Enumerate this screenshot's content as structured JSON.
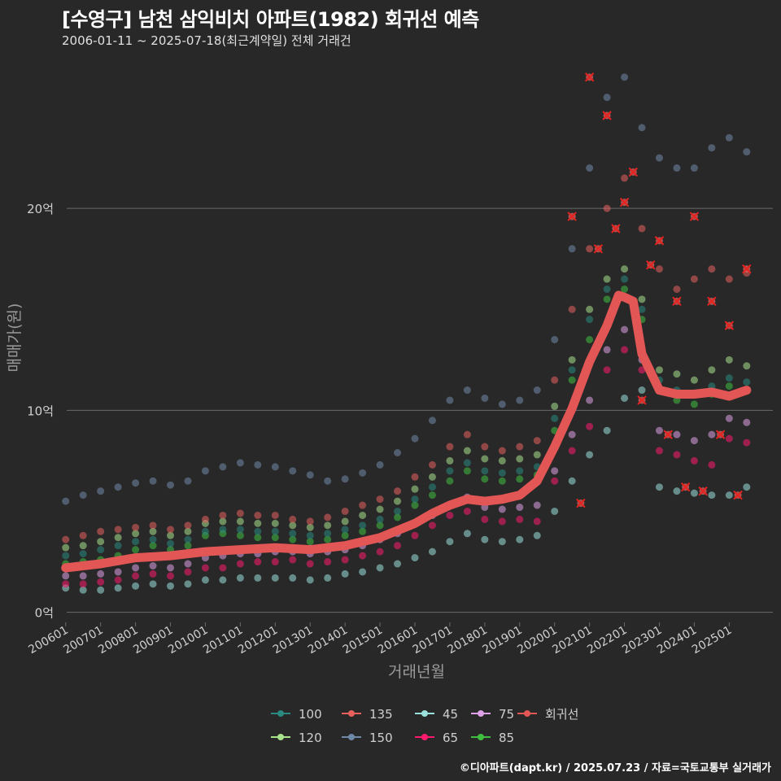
{
  "title": "[수영구] 남천 삼익비치 아파트(1982) 회귀선 예측",
  "subtitle": "2006-01-11 ~ 2025-07-18(최근계약일) 전체 거래건",
  "footer": "©디아파트(dapt.kr) / 2025.07.23 / 자료=국토교통부 실거래가",
  "colors": {
    "background": "#282828",
    "gridline": "#6a6a6a",
    "axis_text": "#cfcfcf",
    "axis_title": "#9a9a9a",
    "outlier_marker": "#e8231f"
  },
  "chart_data": {
    "type": "scatter",
    "title": "[수영구] 남천 삼익비치 아파트(1982) 회귀선 예측",
    "subtitle": "2006-01-11 ~ 2025-07-18(최근계약일) 전체 거래건",
    "xlabel": "거래년월",
    "ylabel": "매매가(원)",
    "xlim": [
      "2005-10",
      "2026-04"
    ],
    "ylim": [
      -0.5,
      27.5
    ],
    "y_unit": "억",
    "y_ticks": [
      {
        "value": 0,
        "label": "0억"
      },
      {
        "value": 10,
        "label": "10억"
      },
      {
        "value": 20,
        "label": "20억"
      }
    ],
    "x_tick_labels": [
      "200601",
      "200701",
      "200801",
      "200901",
      "201001",
      "201101",
      "201201",
      "201301",
      "201401",
      "201501",
      "201601",
      "201701",
      "201801",
      "201901",
      "202001",
      "202101",
      "202201",
      "202301",
      "202401",
      "202501"
    ],
    "grid": "horizontal",
    "legend_position": "bottom",
    "legend_entries": [
      "100",
      "120",
      "135",
      "150",
      "45",
      "65",
      "75",
      "85",
      "회귀선"
    ],
    "series": [
      {
        "name": "45",
        "color": "#9ae0dc",
        "x": [
          "2006-01",
          "2006-07",
          "2007-01",
          "2007-07",
          "2008-01",
          "2008-07",
          "2009-01",
          "2009-07",
          "2010-01",
          "2010-07",
          "2011-01",
          "2011-07",
          "2012-01",
          "2012-07",
          "2013-01",
          "2013-07",
          "2014-01",
          "2014-07",
          "2015-01",
          "2015-07",
          "2016-01",
          "2016-07",
          "2017-01",
          "2017-07",
          "2018-01",
          "2018-07",
          "2019-01",
          "2019-07",
          "2020-01",
          "2020-07",
          "2021-01",
          "2021-07",
          "2022-01",
          "2022-07",
          "2023-01",
          "2023-07",
          "2024-01",
          "2024-07",
          "2025-01",
          "2025-07"
        ],
        "y": [
          1.2,
          1.1,
          1.1,
          1.2,
          1.3,
          1.4,
          1.3,
          1.4,
          1.6,
          1.6,
          1.7,
          1.7,
          1.7,
          1.7,
          1.6,
          1.7,
          1.9,
          2.0,
          2.2,
          2.4,
          2.7,
          3.0,
          3.5,
          3.9,
          3.6,
          3.5,
          3.6,
          3.8,
          5.0,
          6.5,
          7.8,
          9.0,
          10.6,
          11.0,
          6.2,
          6.0,
          5.9,
          5.8,
          5.8,
          6.2
        ]
      },
      {
        "name": "65",
        "color": "#ff1a6e",
        "x": [
          "2006-01",
          "2006-07",
          "2007-01",
          "2007-07",
          "2008-01",
          "2008-07",
          "2009-01",
          "2009-07",
          "2010-01",
          "2010-07",
          "2011-01",
          "2011-07",
          "2012-01",
          "2012-07",
          "2013-01",
          "2013-07",
          "2014-01",
          "2014-07",
          "2015-01",
          "2015-07",
          "2016-01",
          "2016-07",
          "2017-01",
          "2017-07",
          "2018-01",
          "2018-07",
          "2019-01",
          "2019-07",
          "2020-01",
          "2020-07",
          "2021-01",
          "2021-07",
          "2022-01",
          "2022-07",
          "2023-01",
          "2023-07",
          "2024-01",
          "2024-07",
          "2025-01",
          "2025-07"
        ],
        "y": [
          1.4,
          1.4,
          1.5,
          1.6,
          1.8,
          1.9,
          1.8,
          2.0,
          2.2,
          2.2,
          2.4,
          2.5,
          2.5,
          2.6,
          2.4,
          2.5,
          2.6,
          2.8,
          3.0,
          3.3,
          3.8,
          4.3,
          4.8,
          5.0,
          4.6,
          4.5,
          4.6,
          4.5,
          6.5,
          8.0,
          9.2,
          12.0,
          13.0,
          12.0,
          8.0,
          7.8,
          7.5,
          7.3,
          8.6,
          8.4
        ]
      },
      {
        "name": "75",
        "color": "#dea0e6",
        "x": [
          "2006-01",
          "2006-07",
          "2007-01",
          "2007-07",
          "2008-01",
          "2008-07",
          "2009-01",
          "2009-07",
          "2010-01",
          "2010-07",
          "2011-01",
          "2011-07",
          "2012-01",
          "2012-07",
          "2013-01",
          "2013-07",
          "2014-01",
          "2014-07",
          "2015-01",
          "2015-07",
          "2016-01",
          "2016-07",
          "2017-01",
          "2017-07",
          "2018-01",
          "2018-07",
          "2019-01",
          "2019-07",
          "2020-01",
          "2020-07",
          "2021-01",
          "2021-07",
          "2022-01",
          "2022-07",
          "2023-01",
          "2023-07",
          "2024-01",
          "2024-07",
          "2025-01",
          "2025-07"
        ],
        "y": [
          1.8,
          1.8,
          1.9,
          2.0,
          2.2,
          2.3,
          2.2,
          2.4,
          2.7,
          2.8,
          2.9,
          2.9,
          3.0,
          3.0,
          2.9,
          3.0,
          3.1,
          3.3,
          3.6,
          3.9,
          4.4,
          4.8,
          5.3,
          5.7,
          5.2,
          5.1,
          5.2,
          5.3,
          7.0,
          8.8,
          10.5,
          13.0,
          14.0,
          12.5,
          9.0,
          8.8,
          8.5,
          8.8,
          9.6,
          9.4
        ]
      },
      {
        "name": "85",
        "color": "#3fbf3f",
        "x": [
          "2006-01",
          "2006-07",
          "2007-01",
          "2007-07",
          "2008-01",
          "2008-07",
          "2009-01",
          "2009-07",
          "2010-01",
          "2010-07",
          "2011-01",
          "2011-07",
          "2012-01",
          "2012-07",
          "2013-01",
          "2013-07",
          "2014-01",
          "2014-07",
          "2015-01",
          "2015-07",
          "2016-01",
          "2016-07",
          "2017-01",
          "2017-07",
          "2018-01",
          "2018-07",
          "2019-01",
          "2019-07",
          "2020-01",
          "2020-07",
          "2021-01",
          "2021-07",
          "2022-01",
          "2022-07",
          "2023-01",
          "2023-07",
          "2024-01",
          "2024-07",
          "2025-01",
          "2025-07"
        ],
        "y": [
          2.4,
          2.5,
          2.6,
          2.8,
          3.1,
          3.3,
          3.1,
          3.3,
          3.8,
          3.9,
          3.8,
          3.7,
          3.7,
          3.6,
          3.5,
          3.6,
          3.8,
          4.0,
          4.3,
          4.7,
          5.3,
          5.8,
          6.5,
          7.0,
          6.6,
          6.5,
          6.6,
          6.8,
          9.0,
          11.5,
          13.5,
          15.5,
          16.0,
          14.5,
          11.0,
          10.5,
          10.3,
          10.8,
          11.2,
          11.0
        ]
      },
      {
        "name": "100",
        "color": "#2a8a80",
        "x": [
          "2006-01",
          "2006-07",
          "2007-01",
          "2007-07",
          "2008-01",
          "2008-07",
          "2009-01",
          "2009-07",
          "2010-01",
          "2010-07",
          "2011-01",
          "2011-07",
          "2012-01",
          "2012-07",
          "2013-01",
          "2013-07",
          "2014-01",
          "2014-07",
          "2015-01",
          "2015-07",
          "2016-01",
          "2016-07",
          "2017-01",
          "2017-07",
          "2018-01",
          "2018-07",
          "2019-01",
          "2019-07",
          "2020-01",
          "2020-07",
          "2021-01",
          "2021-07",
          "2022-01",
          "2022-07",
          "2023-01",
          "2023-07",
          "2024-01",
          "2024-07",
          "2025-01",
          "2025-07"
        ],
        "y": [
          2.8,
          2.9,
          3.1,
          3.3,
          3.5,
          3.6,
          3.4,
          3.6,
          4.0,
          4.1,
          4.1,
          4.0,
          4.0,
          3.9,
          3.8,
          3.9,
          4.1,
          4.3,
          4.6,
          5.0,
          5.6,
          6.2,
          7.0,
          7.4,
          7.0,
          6.9,
          7.0,
          7.2,
          9.6,
          12.0,
          14.5,
          16.0,
          16.5,
          15.0,
          11.5,
          11.0,
          10.8,
          11.2,
          11.6,
          11.4
        ]
      },
      {
        "name": "120",
        "color": "#a8e28c",
        "x": [
          "2006-01",
          "2006-07",
          "2007-01",
          "2007-07",
          "2008-01",
          "2008-07",
          "2009-01",
          "2009-07",
          "2010-01",
          "2010-07",
          "2011-01",
          "2011-07",
          "2012-01",
          "2012-07",
          "2013-01",
          "2013-07",
          "2014-01",
          "2014-07",
          "2015-01",
          "2015-07",
          "2016-01",
          "2016-07",
          "2017-01",
          "2017-07",
          "2018-01",
          "2018-07",
          "2019-01",
          "2019-07",
          "2020-01",
          "2020-07",
          "2021-01",
          "2021-07",
          "2022-01",
          "2022-07",
          "2023-01",
          "2023-07",
          "2024-01",
          "2024-07",
          "2025-01",
          "2025-07"
        ],
        "y": [
          3.2,
          3.3,
          3.5,
          3.7,
          3.9,
          4.0,
          3.8,
          4.0,
          4.4,
          4.5,
          4.5,
          4.4,
          4.4,
          4.3,
          4.2,
          4.3,
          4.5,
          4.8,
          5.1,
          5.5,
          6.1,
          6.7,
          7.5,
          8.0,
          7.6,
          7.5,
          7.6,
          7.8,
          10.2,
          12.5,
          15.0,
          16.5,
          17.0,
          15.5,
          12.0,
          11.8,
          11.5,
          12.0,
          12.5,
          12.2
        ]
      },
      {
        "name": "135",
        "color": "#e8605e",
        "x": [
          "2006-01",
          "2006-07",
          "2007-01",
          "2007-07",
          "2008-01",
          "2008-07",
          "2009-01",
          "2009-07",
          "2010-01",
          "2010-07",
          "2011-01",
          "2011-07",
          "2012-01",
          "2012-07",
          "2013-01",
          "2013-07",
          "2014-01",
          "2014-07",
          "2015-01",
          "2015-07",
          "2016-01",
          "2016-07",
          "2017-01",
          "2017-07",
          "2018-01",
          "2018-07",
          "2019-01",
          "2019-07",
          "2020-01",
          "2020-07",
          "2021-01",
          "2021-07",
          "2022-01",
          "2022-07",
          "2023-01",
          "2023-07",
          "2024-01",
          "2024-07",
          "2025-01",
          "2025-07"
        ],
        "y": [
          3.6,
          3.8,
          4.0,
          4.1,
          4.2,
          4.3,
          4.1,
          4.3,
          4.6,
          4.8,
          4.9,
          4.8,
          4.8,
          4.6,
          4.5,
          4.7,
          5.0,
          5.3,
          5.6,
          6.0,
          6.7,
          7.3,
          8.2,
          8.8,
          8.2,
          8.0,
          8.2,
          8.5,
          11.5,
          15.0,
          18.0,
          20.0,
          21.5,
          19.0,
          17.0,
          16.0,
          16.5,
          17.0,
          16.5,
          16.8
        ]
      },
      {
        "name": "150",
        "color": "#6f88a8",
        "x": [
          "2006-01",
          "2006-07",
          "2007-01",
          "2007-07",
          "2008-01",
          "2008-07",
          "2009-01",
          "2009-07",
          "2010-01",
          "2010-07",
          "2011-01",
          "2011-07",
          "2012-01",
          "2012-07",
          "2013-01",
          "2013-07",
          "2014-01",
          "2014-07",
          "2015-01",
          "2015-07",
          "2016-01",
          "2016-07",
          "2017-01",
          "2017-07",
          "2018-01",
          "2018-07",
          "2019-01",
          "2019-07",
          "2020-01",
          "2020-07",
          "2021-01",
          "2021-07",
          "2022-01",
          "2022-07",
          "2023-01",
          "2023-07",
          "2024-01",
          "2024-07",
          "2025-01",
          "2025-07"
        ],
        "y": [
          5.5,
          5.8,
          6.0,
          6.2,
          6.4,
          6.5,
          6.3,
          6.5,
          7.0,
          7.2,
          7.4,
          7.3,
          7.2,
          7.0,
          6.8,
          6.5,
          6.6,
          6.9,
          7.3,
          7.9,
          8.6,
          9.5,
          10.5,
          11.0,
          10.6,
          10.3,
          10.5,
          11.0,
          13.5,
          18.0,
          22.0,
          25.5,
          26.5,
          24.0,
          22.5,
          22.0,
          22.0,
          23.0,
          23.5,
          22.8
        ]
      }
    ],
    "regression_line": {
      "name": "회귀선",
      "color": "#e35656",
      "x": [
        "2006-01",
        "2007-01",
        "2008-01",
        "2009-01",
        "2010-01",
        "2011-01",
        "2012-01",
        "2013-01",
        "2014-01",
        "2015-01",
        "2016-01",
        "2016-07",
        "2017-01",
        "2017-07",
        "2018-01",
        "2018-07",
        "2019-01",
        "2019-07",
        "2020-01",
        "2020-07",
        "2021-01",
        "2021-07",
        "2021-11",
        "2022-01",
        "2022-04",
        "2022-07",
        "2023-01",
        "2023-07",
        "2024-01",
        "2024-07",
        "2025-01",
        "2025-07"
      ],
      "y": [
        2.2,
        2.4,
        2.7,
        2.8,
        3.0,
        3.1,
        3.2,
        3.1,
        3.3,
        3.7,
        4.4,
        4.9,
        5.3,
        5.6,
        5.5,
        5.6,
        5.8,
        6.5,
        8.2,
        10.1,
        12.4,
        14.2,
        15.7,
        15.6,
        15.4,
        12.8,
        11.0,
        10.8,
        10.8,
        10.9,
        10.7,
        11.0
      ]
    },
    "outliers": {
      "x": [
        "2020-07",
        "2020-10",
        "2021-01",
        "2021-04",
        "2021-07",
        "2021-10",
        "2022-01",
        "2022-04",
        "2022-07",
        "2022-10",
        "2023-01",
        "2023-04",
        "2023-07",
        "2023-10",
        "2024-01",
        "2024-04",
        "2024-07",
        "2024-10",
        "2025-01",
        "2025-04",
        "2025-07"
      ],
      "y": [
        19.6,
        5.4,
        26.5,
        18.0,
        24.6,
        19.0,
        20.3,
        21.8,
        10.5,
        17.2,
        18.4,
        8.8,
        15.4,
        6.2,
        19.6,
        6.0,
        15.4,
        8.8,
        14.2,
        5.8,
        17.0
      ]
    }
  }
}
